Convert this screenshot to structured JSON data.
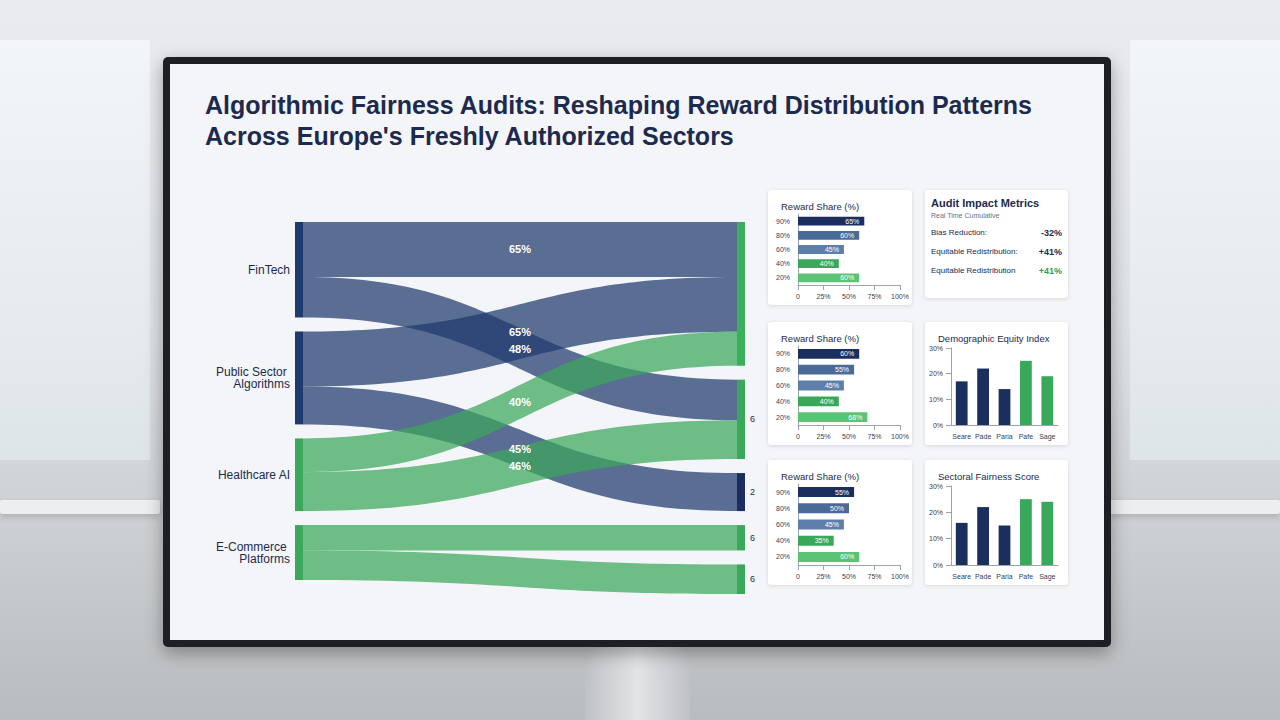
{
  "title": "Algorithmic Fairness Audits: Reshaping Reward Distribution Patterns Across Europe's Freshly Authorized Sectors",
  "audit_metrics": {
    "title": "Audit Impact Metrics",
    "subtitle": "Real Time Cumulative",
    "rows": [
      {
        "label": "Bias Reduction:",
        "value": "-32%",
        "color": "#1c2a4e"
      },
      {
        "label": "Equitable Redistribution:",
        "value": "+41%",
        "color": "#1c2a4e"
      },
      {
        "label": "Equitable Redistribution",
        "value": "+41%",
        "color": "#2e9e4f"
      }
    ]
  },
  "chart_data": [
    {
      "type": "sankey",
      "data_labels": true,
      "nodes": [
        {
          "label": "FinTech",
          "color": "#1f3a6e"
        },
        {
          "label": "Public Sector Algorithms",
          "color": "#1f3a6e"
        },
        {
          "label": "Healthcare AI",
          "color": "#3aa85a"
        },
        {
          "label": "E-Commerce Platforms",
          "color": "#3aa85a"
        },
        {
          "label": null,
          "color": "#3bb05c"
        },
        {
          "label": "6",
          "color": "#3aa85a"
        },
        {
          "label": "2",
          "color": "#1b2f5e"
        },
        {
          "label": "6",
          "color": "#3aa85a"
        },
        {
          "label": "6",
          "color": "#3aa85a"
        }
      ],
      "links": [
        {
          "source": 0,
          "target": 4,
          "value": 65,
          "label": "65%"
        },
        {
          "source": 0,
          "target": 5,
          "value": 48,
          "label": "48%"
        },
        {
          "source": 1,
          "target": 4,
          "value": 65,
          "label": "65%"
        },
        {
          "source": 1,
          "target": 6,
          "value": 45,
          "label": "45%"
        },
        {
          "source": 2,
          "target": 4,
          "value": 40,
          "label": "40%"
        },
        {
          "source": 2,
          "target": 5,
          "value": 46,
          "label": "46%"
        },
        {
          "source": 3,
          "target": 7,
          "value": 30,
          "label": null
        },
        {
          "source": 3,
          "target": 8,
          "value": 35,
          "label": null
        }
      ]
    },
    {
      "type": "bar",
      "orientation": "horizontal",
      "title": "Reward Share (%)",
      "categories": [
        "90%",
        "80%",
        "60%",
        "40%",
        "20%"
      ],
      "values": [
        65,
        60,
        45,
        40,
        60
      ],
      "value_labels": [
        "65%",
        "60%",
        "45%",
        "40%",
        "60%"
      ],
      "colors": [
        "#1b2f5e",
        "#4a6a98",
        "#5e7faa",
        "#3aa85a",
        "#5cc276"
      ],
      "xlim": [
        0,
        100
      ],
      "xticks": [
        0,
        {
          "value": 25,
          "label": "25%"
        },
        {
          "value": 50,
          "label": "50%"
        },
        {
          "value": 75,
          "label": "75%"
        },
        {
          "value": 100,
          "label": "100%"
        }
      ],
      "grid": false,
      "data_labels": true
    },
    {
      "type": "bar",
      "orientation": "horizontal",
      "title": "Reward Share (%)",
      "categories": [
        "90%",
        "80%",
        "60%",
        "40%",
        "20%"
      ],
      "values": [
        60,
        55,
        45,
        40,
        68
      ],
      "value_labels": [
        "60%",
        "55%",
        "45%",
        "40%",
        "68%"
      ],
      "colors": [
        "#1b2f5e",
        "#4a6a98",
        "#5e7faa",
        "#3aa85a",
        "#5cc276"
      ],
      "xlim": [
        0,
        100
      ],
      "xticks": [
        0,
        {
          "value": 25,
          "label": "25%"
        },
        {
          "value": 50,
          "label": "50%"
        },
        {
          "value": 75,
          "label": "75%"
        },
        {
          "value": 100,
          "label": "100%"
        }
      ],
      "grid": false,
      "data_labels": true
    },
    {
      "type": "bar",
      "orientation": "horizontal",
      "title": "Reward Share (%)",
      "categories": [
        "90%",
        "80%",
        "60%",
        "40%",
        "20%"
      ],
      "values": [
        55,
        50,
        45,
        35,
        60
      ],
      "value_labels": [
        "55%",
        "50%",
        "45%",
        "35%",
        "60%"
      ],
      "colors": [
        "#1b2f5e",
        "#4a6a98",
        "#5e7faa",
        "#3aa85a",
        "#5cc276"
      ],
      "xlim": [
        0,
        100
      ],
      "xticks": [
        0,
        {
          "value": 25,
          "label": "25%"
        },
        {
          "value": 50,
          "label": "50%"
        },
        {
          "value": 75,
          "label": "75%"
        },
        {
          "value": 100,
          "label": "100%"
        }
      ],
      "grid": false,
      "data_labels": true
    },
    {
      "type": "bar",
      "title": "Demographic Equity Index",
      "categories": [
        "Seare",
        "Pade",
        "Paria",
        "Pafe",
        "Sage"
      ],
      "values": [
        17,
        22,
        14,
        25,
        19
      ],
      "colors": [
        "#1b2f5e",
        "#1b2f5e",
        "#1b2f5e",
        "#3aa85a",
        "#3aa85a"
      ],
      "ylim": [
        0,
        30
      ],
      "yticks": [
        {
          "value": 0,
          "label": "0%"
        },
        {
          "value": 10,
          "label": "10%"
        },
        {
          "value": 20,
          "label": "20%"
        },
        {
          "value": 30,
          "label": "30%"
        }
      ],
      "grid": false
    },
    {
      "type": "bar",
      "title": "Sectoral Fairness Score",
      "categories": [
        "Seare",
        "Pade",
        "Paria",
        "Pafe",
        "Sage"
      ],
      "values": [
        16,
        22,
        15,
        25,
        24
      ],
      "colors": [
        "#1b2f5e",
        "#1b2f5e",
        "#1b2f5e",
        "#3aa85a",
        "#3aa85a"
      ],
      "ylim": [
        0,
        30
      ],
      "yticks": [
        {
          "value": 0,
          "label": "0%"
        },
        {
          "value": 10,
          "label": "10%"
        },
        {
          "value": 20,
          "label": "20%"
        },
        {
          "value": 30,
          "label": "30%"
        }
      ],
      "grid": false
    }
  ]
}
